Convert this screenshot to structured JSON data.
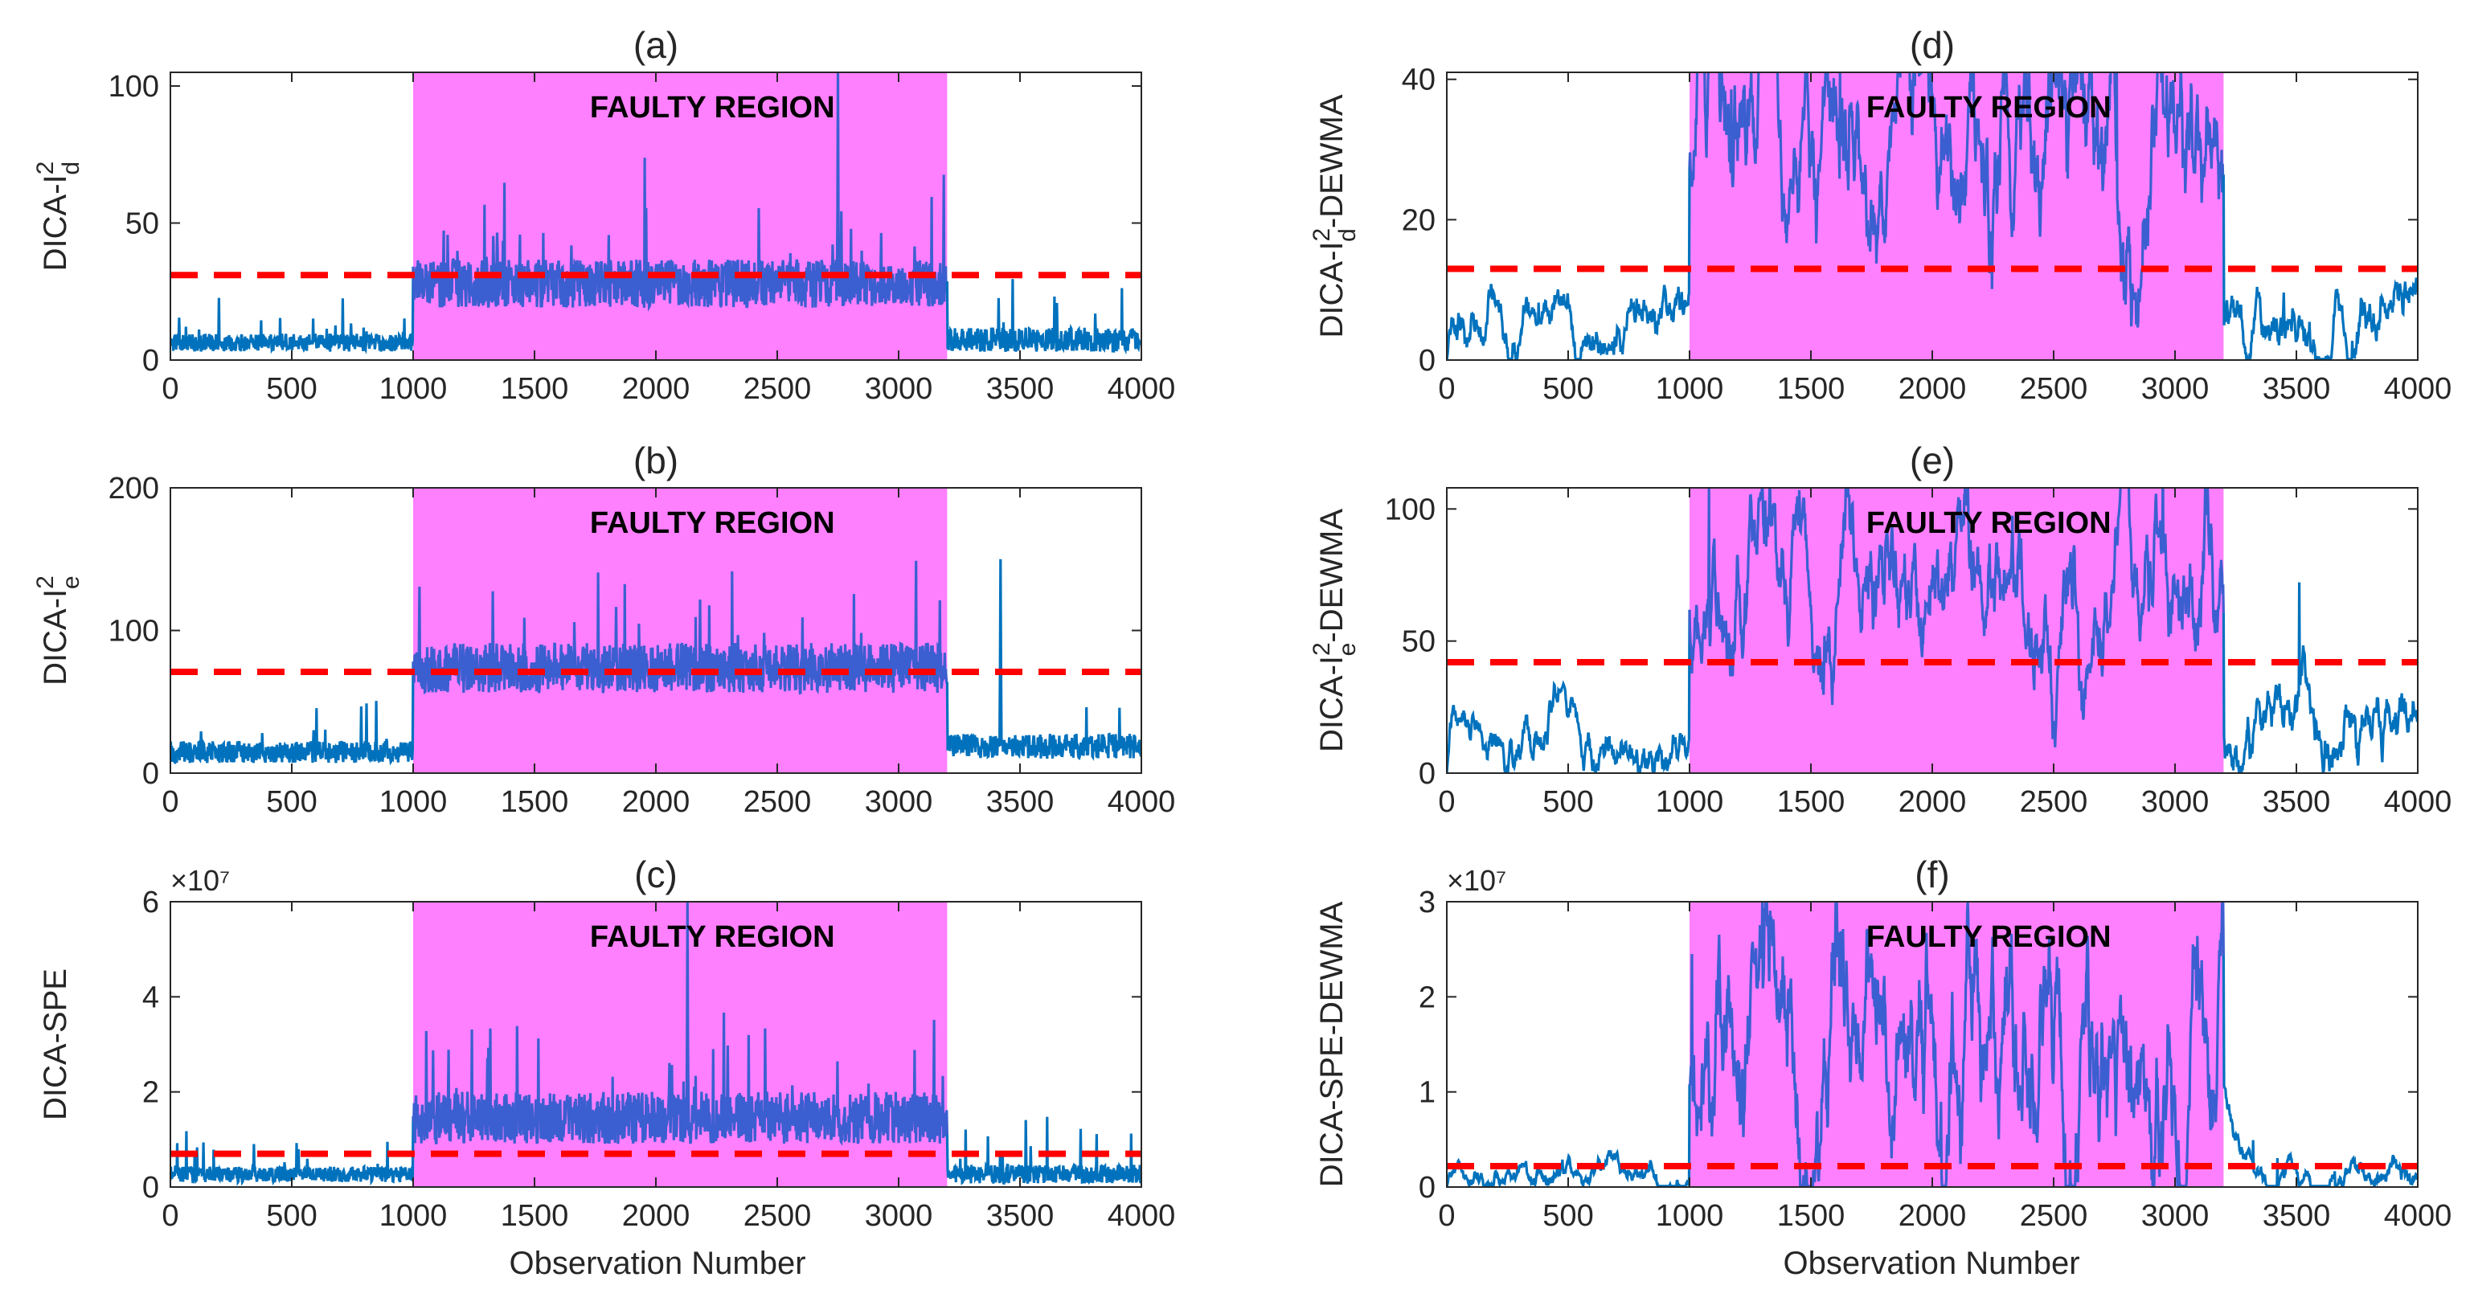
{
  "figure": {
    "x_axis_label": "Observation Number",
    "fault_color": "#ff80ff",
    "signal_color": "#0072bd",
    "fault_signal_color": "#3b5fd0",
    "threshold_color": "#ff0000"
  },
  "chart_data": [
    {
      "id": "a",
      "type": "line",
      "title": "(a)",
      "ylabel_main": "DICA-I",
      "ylabel_sup": "2",
      "ylabel_sub": "d",
      "ylabel_tail": "",
      "multiplier": "",
      "xlim": [
        0,
        4000
      ],
      "ylim": [
        0,
        105
      ],
      "xticks": [
        0,
        500,
        1000,
        1500,
        2000,
        2500,
        3000,
        3500,
        4000
      ],
      "xtick_labels": [
        "0",
        "500",
        "1000",
        "1500",
        "2000",
        "2500",
        "3000",
        "3500",
        "4000"
      ],
      "yticks": [
        0,
        50,
        100
      ],
      "ytick_labels": [
        "0",
        "50",
        "100"
      ],
      "fault_region": [
        1000,
        3200
      ],
      "fault_label": "FAULTY REGION",
      "threshold": 31,
      "series": {
        "normal_level": 6,
        "normal_noise": 3,
        "normal_spike": 16,
        "fault_level": 27,
        "fault_noise": 8,
        "fault_spike": 38,
        "peak": [
          2750,
          105
        ],
        "post_level": 7,
        "post_noise": 4,
        "post_spike": 20,
        "smooth": false
      }
    },
    {
      "id": "b",
      "type": "line",
      "title": "(b)",
      "ylabel_main": "DICA-I",
      "ylabel_sup": "2",
      "ylabel_sub": "e",
      "ylabel_tail": "",
      "multiplier": "",
      "xlim": [
        0,
        4000
      ],
      "ylim": [
        0,
        200
      ],
      "xticks": [
        0,
        500,
        1000,
        1500,
        2000,
        2500,
        3000,
        3500,
        4000
      ],
      "xtick_labels": [
        "0",
        "500",
        "1000",
        "1500",
        "2000",
        "2500",
        "3000",
        "3500",
        "4000"
      ],
      "yticks": [
        0,
        100,
        200
      ],
      "ytick_labels": [
        "0",
        "100",
        "200"
      ],
      "fault_region": [
        1000,
        3200
      ],
      "fault_label": "FAULTY REGION",
      "threshold": 71,
      "series": {
        "normal_level": 14,
        "normal_noise": 7,
        "normal_spike": 40,
        "fault_level": 72,
        "fault_noise": 16,
        "fault_spike": 65,
        "peak": [
          3420,
          150
        ],
        "post_level": 18,
        "post_noise": 8,
        "post_spike": 45,
        "smooth": false
      }
    },
    {
      "id": "c",
      "type": "line",
      "title": "(c)",
      "ylabel_main": "DICA-SPE",
      "ylabel_sup": "",
      "ylabel_sub": "",
      "ylabel_tail": "",
      "multiplier": "×10⁷",
      "xlim": [
        0,
        4000
      ],
      "ylim": [
        0,
        6
      ],
      "xticks": [
        0,
        500,
        1000,
        1500,
        2000,
        2500,
        3000,
        3500,
        4000
      ],
      "xtick_labels": [
        "0",
        "500",
        "1000",
        "1500",
        "2000",
        "2500",
        "3000",
        "3500",
        "4000"
      ],
      "yticks": [
        0,
        2,
        4,
        6
      ],
      "ytick_labels": [
        "0",
        "2",
        "4",
        "6"
      ],
      "fault_region": [
        1000,
        3200
      ],
      "fault_label": "FAULTY REGION",
      "threshold": 0.7,
      "series": {
        "normal_level": 0.25,
        "normal_noise": 0.15,
        "normal_spike": 0.8,
        "fault_level": 1.4,
        "fault_noise": 0.5,
        "fault_spike": 2.5,
        "peak": [
          2130,
          6
        ],
        "post_level": 0.25,
        "post_noise": 0.18,
        "post_spike": 1.2,
        "smooth": false
      }
    },
    {
      "id": "d",
      "type": "line",
      "title": "(d)",
      "ylabel_main": "DICA-I",
      "ylabel_sup": "2",
      "ylabel_sub": "d",
      "ylabel_tail": "-DEWMA",
      "multiplier": "",
      "xlim": [
        0,
        4000
      ],
      "ylim": [
        0,
        41
      ],
      "xticks": [
        0,
        500,
        1000,
        1500,
        2000,
        2500,
        3000,
        3500,
        4000
      ],
      "xtick_labels": [
        "0",
        "500",
        "1000",
        "1500",
        "2000",
        "2500",
        "3000",
        "3500",
        "4000"
      ],
      "yticks": [
        0,
        20,
        40
      ],
      "ytick_labels": [
        "0",
        "20",
        "40"
      ],
      "fault_region": [
        1000,
        3200
      ],
      "fault_label": "FAULTY REGION",
      "threshold": 13,
      "series": {
        "normal_level": 4.5,
        "normal_noise": 1.2,
        "normal_spike": 7,
        "fault_level": 26,
        "fault_noise": 4,
        "fault_spike": 12,
        "peak": [
          2760,
          41
        ],
        "post_level": 6.5,
        "post_noise": 1.5,
        "post_spike": 5,
        "smooth": true
      }
    },
    {
      "id": "e",
      "type": "line",
      "title": "(e)",
      "ylabel_main": "DICA-I",
      "ylabel_sup": "2",
      "ylabel_sub": "e",
      "ylabel_tail": "-DEWMA",
      "multiplier": "",
      "xlim": [
        0,
        4000
      ],
      "ylim": [
        0,
        108
      ],
      "xticks": [
        0,
        500,
        1000,
        1500,
        2000,
        2500,
        3000,
        3500,
        4000
      ],
      "xtick_labels": [
        "0",
        "500",
        "1000",
        "1500",
        "2000",
        "2500",
        "3000",
        "3500",
        "4000"
      ],
      "yticks": [
        0,
        50,
        100
      ],
      "ytick_labels": [
        "0",
        "50",
        "100"
      ],
      "fault_region": [
        1000,
        3200
      ],
      "fault_label": "FAULTY REGION",
      "threshold": 42,
      "series": {
        "normal_level": 15,
        "normal_noise": 3,
        "normal_spike": 22,
        "fault_level": 68,
        "fault_noise": 8,
        "fault_spike": 25,
        "peak": [
          1080,
          108
        ],
        "post_level": 20,
        "post_noise": 4,
        "post_spike": 50,
        "smooth": true
      }
    },
    {
      "id": "f",
      "type": "line",
      "title": "(f)",
      "ylabel_main": "DICA-SPE-DEWMA",
      "ylabel_sup": "",
      "ylabel_sub": "",
      "ylabel_tail": "",
      "multiplier": "×10⁷",
      "xlim": [
        0,
        4000
      ],
      "ylim": [
        0,
        3
      ],
      "xticks": [
        0,
        500,
        1000,
        1500,
        2000,
        2500,
        3000,
        3500,
        4000
      ],
      "xtick_labels": [
        "0",
        "500",
        "1000",
        "1500",
        "2000",
        "2500",
        "3000",
        "3500",
        "4000"
      ],
      "yticks": [
        0,
        1,
        2,
        3
      ],
      "ytick_labels": [
        "0",
        "1",
        "2",
        "3"
      ],
      "fault_region": [
        1000,
        3200
      ],
      "fault_label": "FAULTY REGION",
      "threshold": 0.22,
      "series": {
        "normal_level": 0.12,
        "normal_noise": 0.04,
        "normal_spike": 0.25,
        "fault_level": 1.45,
        "fault_noise": 0.35,
        "fault_spike": 0.9,
        "peak": [
          1010,
          2.45
        ],
        "post_level": 0.12,
        "post_noise": 0.05,
        "post_spike": 0.5,
        "smooth": true
      }
    }
  ]
}
